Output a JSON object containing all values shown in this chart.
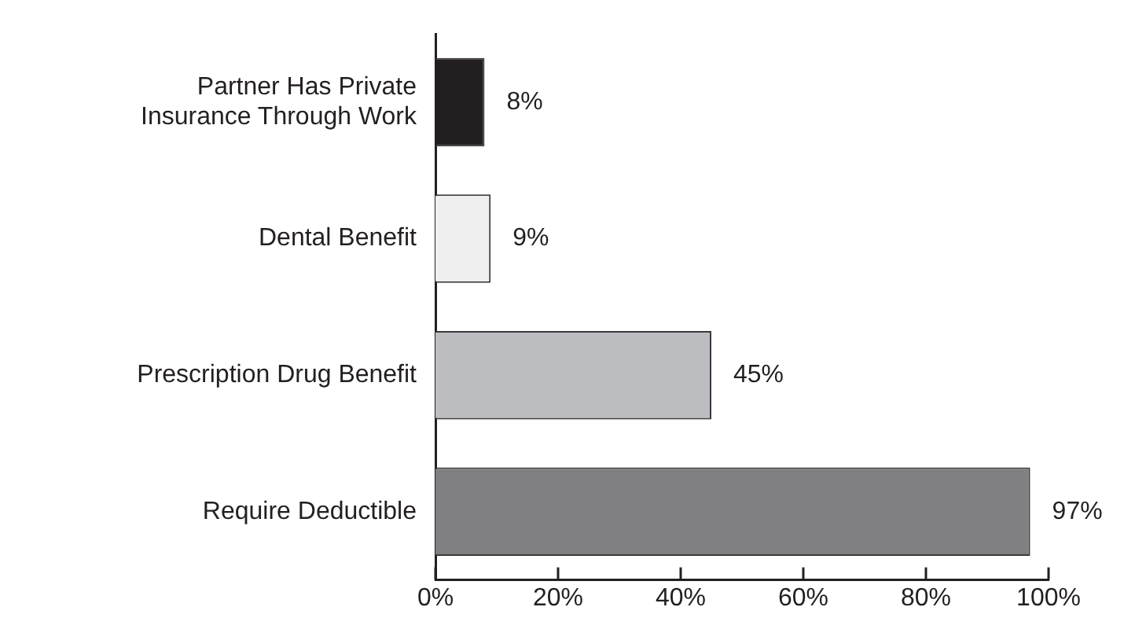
{
  "chart_data": {
    "type": "bar",
    "orientation": "horizontal",
    "categories": [
      "Partner Has Private Insurance Through Work",
      "Dental Benefit",
      "Prescription Drug Benefit",
      "Require Deductible"
    ],
    "values": [
      8,
      9,
      45,
      97
    ],
    "value_labels": [
      "8%",
      "9%",
      "45%",
      "97%"
    ],
    "colors": [
      "#231f20",
      "#efefef",
      "#bcbdc0",
      "#808083"
    ],
    "xlim": [
      0,
      100
    ],
    "xticks": [
      {
        "value": 0,
        "label": "0%"
      },
      {
        "value": 20,
        "label": "20%"
      },
      {
        "value": 40,
        "label": "40%"
      },
      {
        "value": 60,
        "label": "60%"
      },
      {
        "value": 80,
        "label": "80%"
      },
      {
        "value": 100,
        "label": "100%"
      }
    ],
    "grid": false,
    "legend": false
  }
}
